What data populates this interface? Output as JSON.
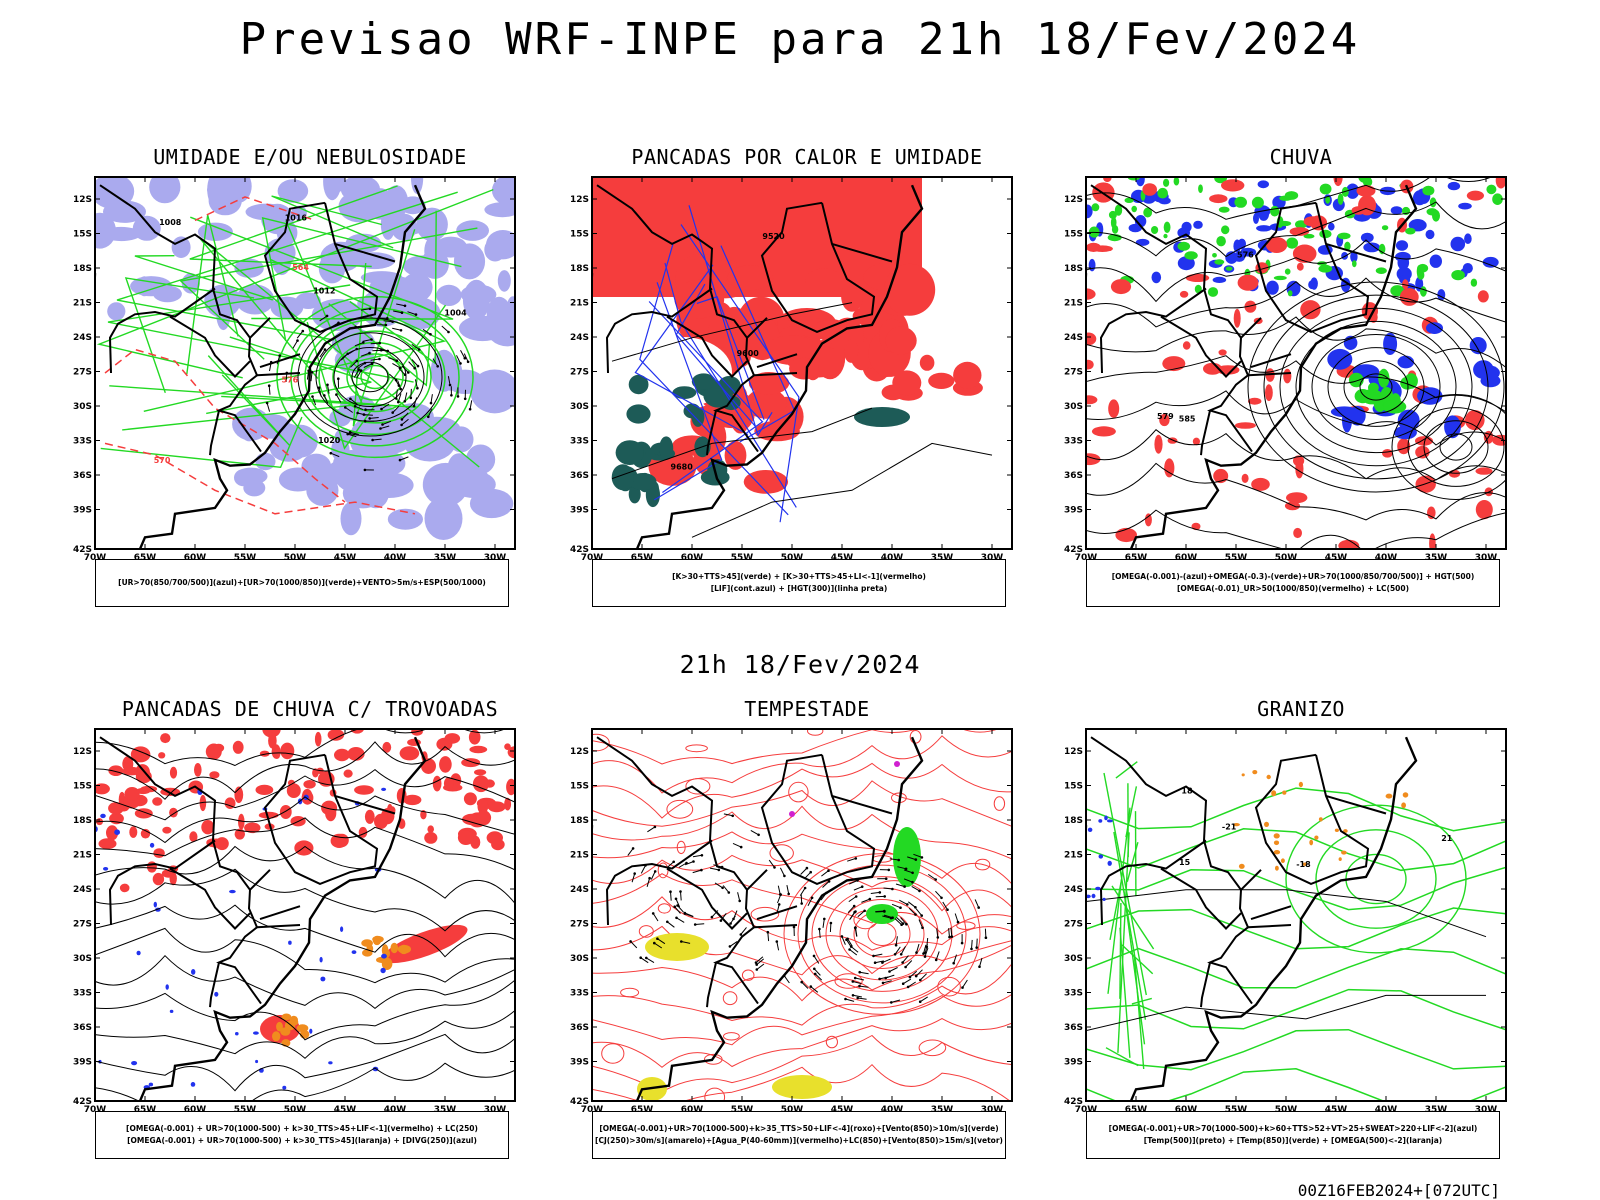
{
  "title": "Previsao WRF-INPE  para 21h 18/Fev/2024",
  "subtitle": "21h 18/Fev/2024",
  "footer": "00Z16FEB2024+[072UTC]",
  "axes": {
    "lat_labels": [
      "12S",
      "15S",
      "18S",
      "21S",
      "24S",
      "27S",
      "30S",
      "33S",
      "36S",
      "39S",
      "42S"
    ],
    "lon_labels": [
      "70W",
      "65W",
      "60W",
      "55W",
      "50W",
      "45W",
      "40W",
      "35W",
      "30W"
    ]
  },
  "colors": {
    "red": "#f53d3d",
    "green": "#23d923",
    "blue": "#2233ee",
    "lavender": "#aaaaee",
    "teal": "#1d5b57",
    "yellow": "#e8e02c",
    "orange": "#f08c1e",
    "magenta": "#d020d0"
  },
  "panels": [
    {
      "id": "umidade",
      "title": "UMIDADE E/OU NEBULOSIDADE",
      "legend": [
        "[UR>70(850/700/500)](azul)+[UR>70(1000/850)](verde)+VENTO>5m/s+ESP(500/1000)"
      ],
      "contour_labels": [
        "1008",
        "1012",
        "1016",
        "1020",
        "1004",
        "576",
        "570",
        "564"
      ]
    },
    {
      "id": "pancadas-calor",
      "title": "PANCADAS POR CALOR E UMIDADE",
      "legend": [
        "[K>30+TTS>45](verde) + [K>30+TTS>45+LI<-1](vermelho)",
        "[LIF](cont.azul) + [HGT(300)](linha preta)"
      ],
      "contour_labels": [
        "9680",
        "9600",
        "9520"
      ]
    },
    {
      "id": "chuva",
      "title": "CHUVA",
      "legend": [
        "[OMEGA(-0.001)-(azul)+OMEGA(-0.3)-(verde)+UR>70(1000/850/700/500)] + HGT(500)",
        "[OMEGA(-0.01)_UR>50(1000/850)(vermelho) + LC(500)"
      ],
      "contour_labels": [
        "585",
        "579",
        "576"
      ]
    },
    {
      "id": "trovoadas",
      "title": "PANCADAS DE CHUVA C/ TROVOADAS",
      "legend": [
        "[OMEGA(-0.001) + UR>70(1000-500) + k>30_TTS>45+LIF<-1](vermelho) + LC(250)",
        "[OMEGA(-0.001) + UR>70(1000-500) + k>30_TTS>45](laranja) + [DIVG(250)](azul)"
      ],
      "contour_labels": []
    },
    {
      "id": "tempestade",
      "title": "TEMPESTADE",
      "legend": [
        "[OMEGA(-0.001)+UR>70(1000-500)+k>35_TTS>50+LIF<-4](roxo)+[Vento(850)>10m/s](verde)",
        "[CJ(250)>30m/s](amarelo)+[Agua_P(40-60mm)](vermelho)+LC(850)+[Vento(850)>15m/s](vetor)"
      ],
      "contour_labels": []
    },
    {
      "id": "granizo",
      "title": "GRANIZO",
      "legend": [
        "[OMEGA(-0.001)+UR>70(1000-500)+k>60+TTS>52+VT>25+SWEAT>220+LIF<-2](azul)",
        "[Temp(500)](preto) + [Temp(850)](verde) + [OMEGA(500)<-2](laranja)"
      ],
      "contour_labels": [
        "-21",
        "-18",
        "15",
        "18",
        "21"
      ]
    }
  ]
}
